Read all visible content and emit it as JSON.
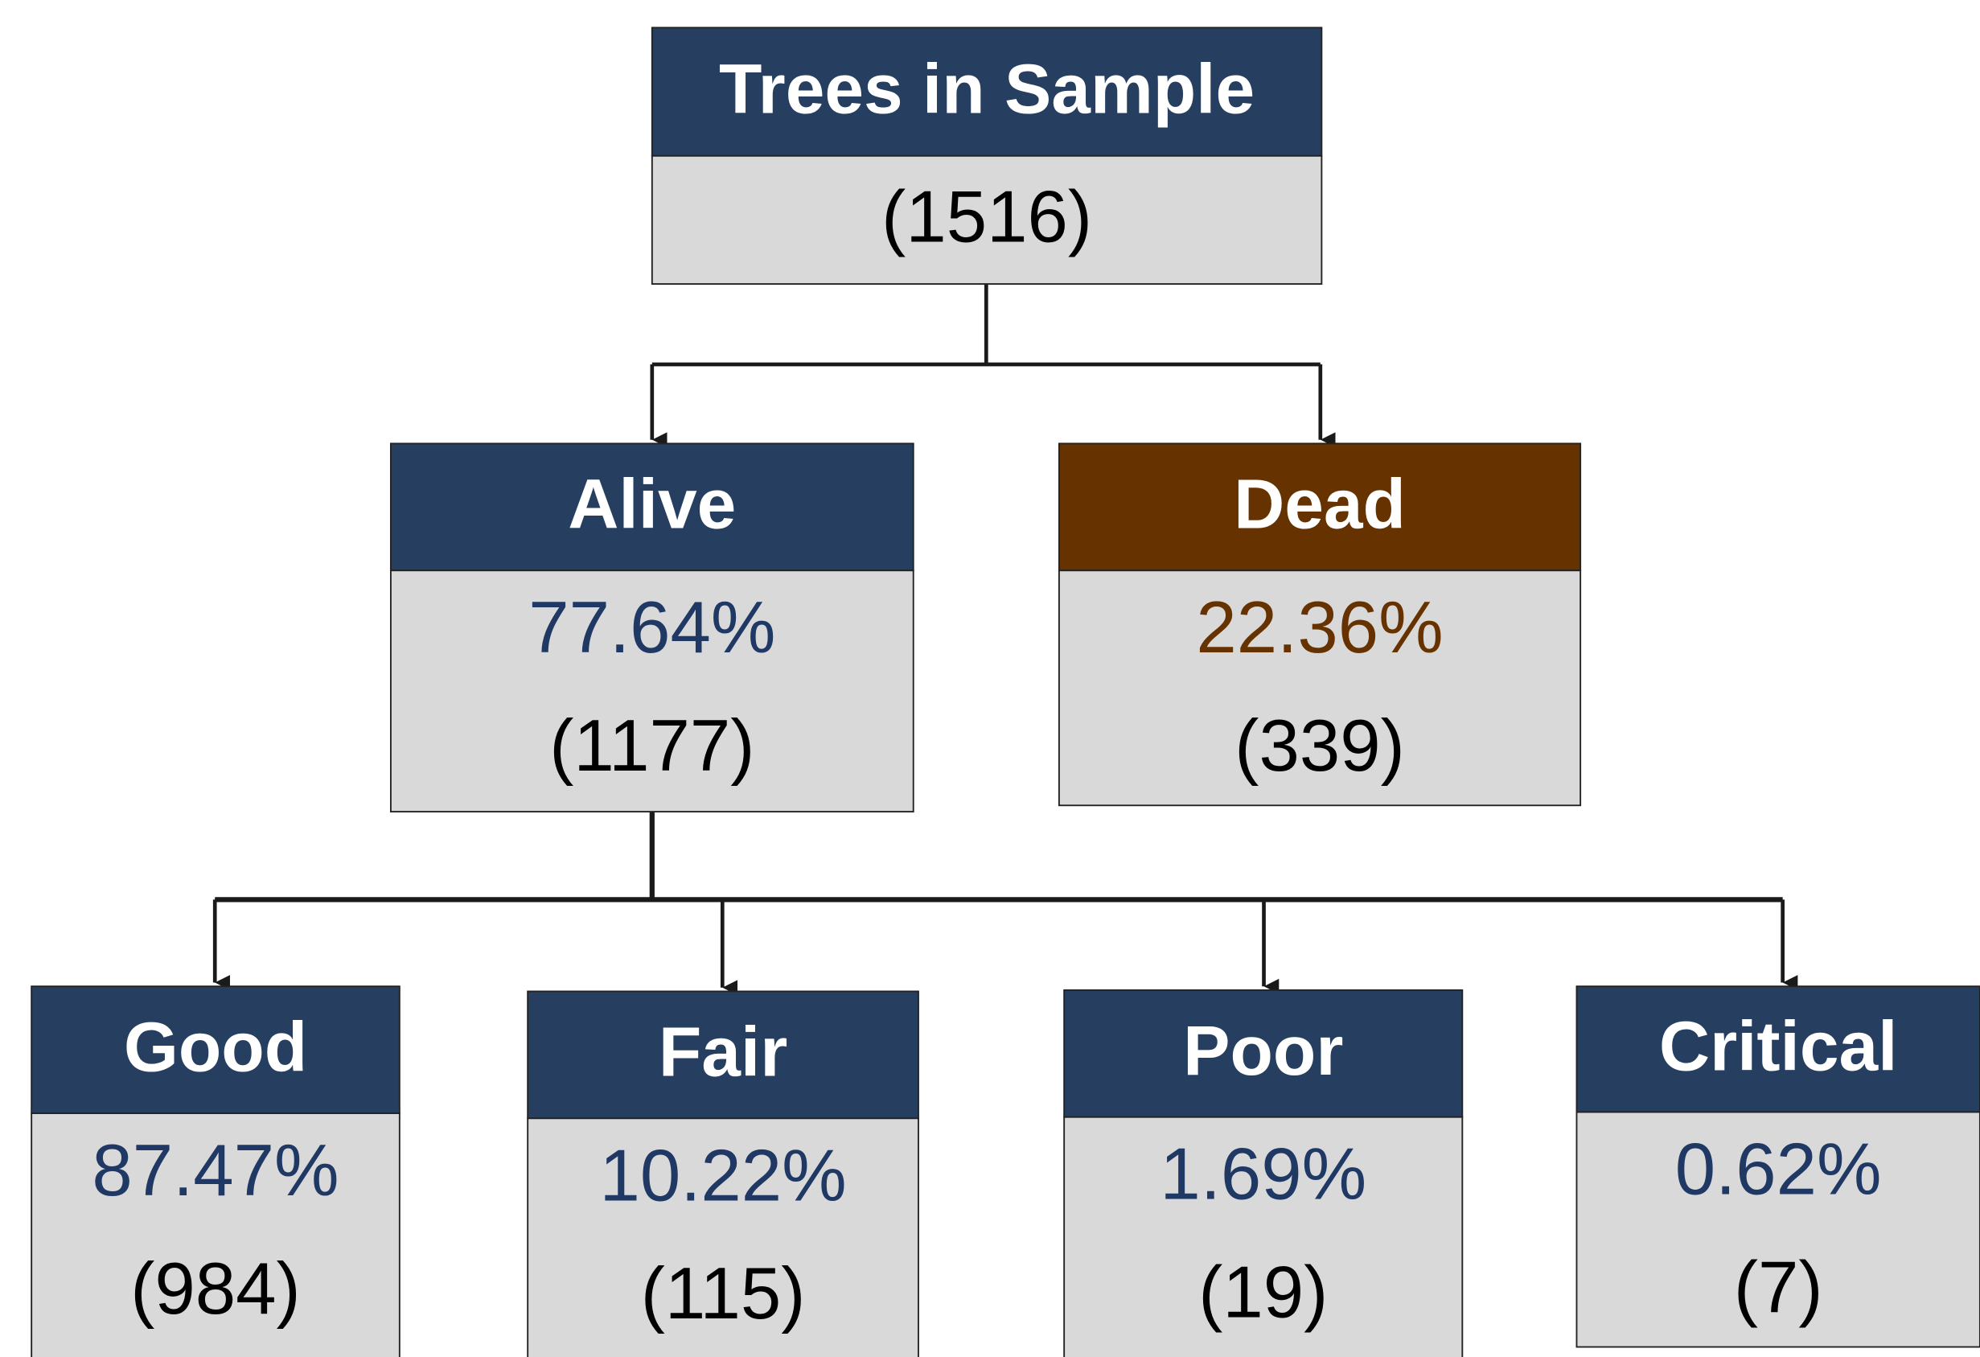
{
  "nodes": [
    {
      "label": "Trees in Sample",
      "count": "(1516)"
    },
    {
      "label": "Alive",
      "percent": "77.64%",
      "count": "(1177)"
    },
    {
      "label": "Dead",
      "percent": "22.36%",
      "count": "(339)"
    },
    {
      "label": "Good",
      "percent": "87.47%",
      "count": "(984)"
    },
    {
      "label": "Fair",
      "percent": "10.22%",
      "count": "(115)"
    },
    {
      "label": "Poor",
      "percent": "1.69%",
      "count": "(19)"
    },
    {
      "label": "Critical",
      "percent": "0.62%",
      "count": "(7)"
    }
  ]
}
